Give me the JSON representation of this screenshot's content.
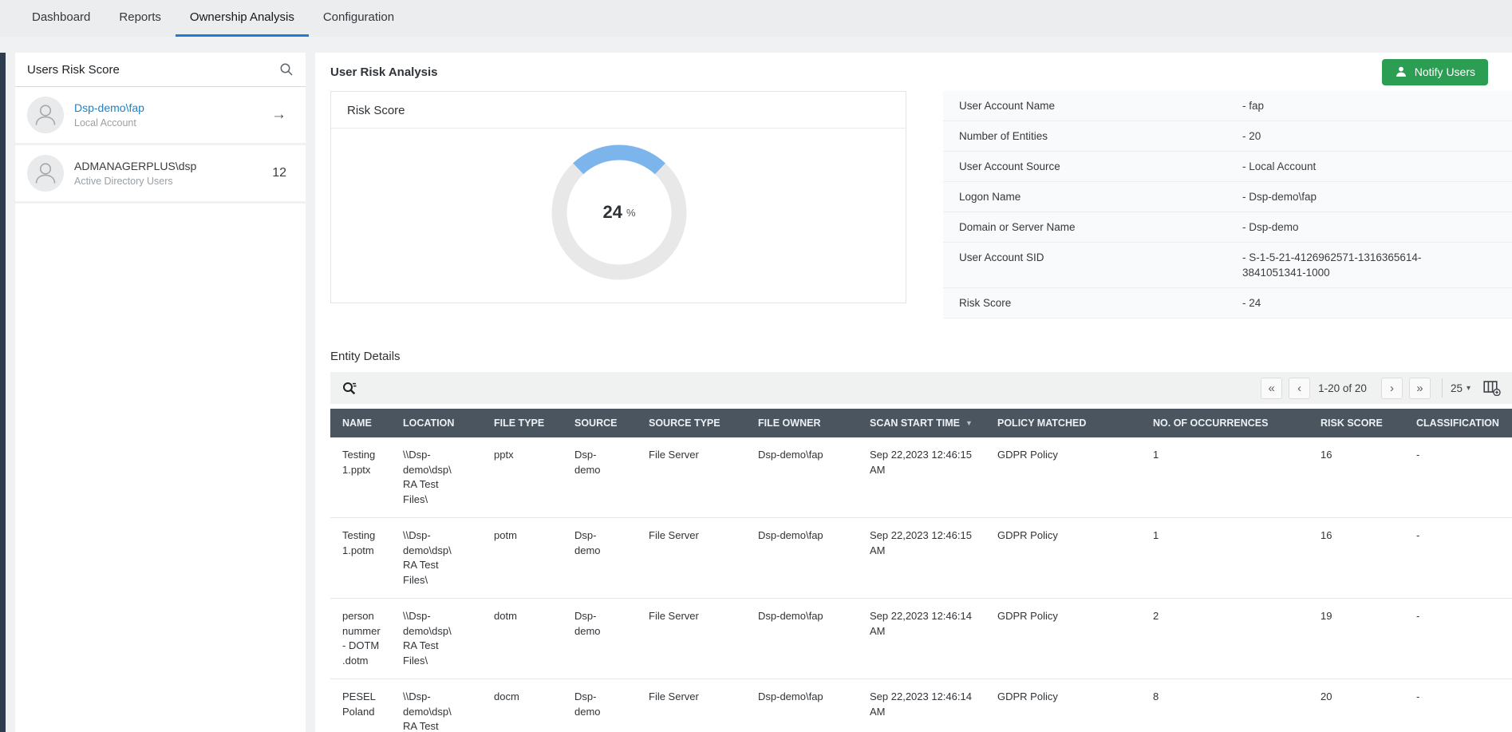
{
  "nav": {
    "items": [
      {
        "label": "Dashboard",
        "active": false
      },
      {
        "label": "Reports",
        "active": false
      },
      {
        "label": "Ownership Analysis",
        "active": true
      },
      {
        "label": "Configuration",
        "active": false
      }
    ]
  },
  "sidebar": {
    "title": "Users Risk Score",
    "users": [
      {
        "name": "Dsp-demo\\fap",
        "type": "Local Account",
        "link": true,
        "trailing": "arrow"
      },
      {
        "name": "ADMANAGERPLUS\\dsp",
        "type": "Active Directory Users",
        "link": false,
        "trailing": "count",
        "count": "12"
      }
    ]
  },
  "header": {
    "title": "User Risk Analysis",
    "notify_label": "Notify Users"
  },
  "risk_card": {
    "title": "Risk Score",
    "value": "24",
    "unit": "%",
    "arc_color": "#7cb5ec",
    "track_color": "#e8e8e8"
  },
  "account_details": {
    "rows": [
      {
        "label": "User Account Name",
        "value": "- fap"
      },
      {
        "label": "Number of Entities",
        "value": "- 20"
      },
      {
        "label": "User Account Source",
        "value": "- Local Account"
      },
      {
        "label": "Logon Name",
        "value": "- Dsp-demo\\fap"
      },
      {
        "label": "Domain or Server Name",
        "value": "- Dsp-demo"
      },
      {
        "label": "User Account SID",
        "value": "- S-1-5-21-4126962571-1316365614-3841051341-1000"
      },
      {
        "label": "Risk Score",
        "value": "- 24"
      }
    ]
  },
  "entity": {
    "title": "Entity Details",
    "toolbar": {
      "range": "1-20 of 20",
      "page_size": "25"
    },
    "table": {
      "columns": [
        {
          "label": "NAME"
        },
        {
          "label": "LOCATION"
        },
        {
          "label": "FILE TYPE"
        },
        {
          "label": "SOURCE"
        },
        {
          "label": "SOURCE TYPE"
        },
        {
          "label": "FILE OWNER"
        },
        {
          "label": "SCAN START TIME",
          "sorted": true
        },
        {
          "label": "POLICY MATCHED"
        },
        {
          "label": "NO. OF OCCURRENCES"
        },
        {
          "label": "RISK SCORE"
        },
        {
          "label": "CLASSIFICATION"
        }
      ],
      "rows": [
        [
          "Testing 1.pptx",
          "\\\\Dsp-demo\\dsp\\RA Test Files\\",
          "pptx",
          "Dsp-demo",
          "File Server",
          "Dsp-demo\\fap",
          "Sep 22,2023 12:46:15 AM",
          "GDPR Policy",
          "1",
          "16",
          "-"
        ],
        [
          "Testing 1.potm",
          "\\\\Dsp-demo\\dsp\\RA Test Files\\",
          "potm",
          "Dsp-demo",
          "File Server",
          "Dsp-demo\\fap",
          "Sep 22,2023 12:46:15 AM",
          "GDPR Policy",
          "1",
          "16",
          "-"
        ],
        [
          "person nummer - DOTM .dotm",
          "\\\\Dsp-demo\\dsp\\RA Test Files\\",
          "dotm",
          "Dsp-demo",
          "File Server",
          "Dsp-demo\\fap",
          "Sep 22,2023 12:46:14 AM",
          "GDPR Policy",
          "2",
          "19",
          "-"
        ],
        [
          "PESEL Poland",
          "\\\\Dsp-demo\\dsp\\RA Test Files\\",
          "docm",
          "Dsp-demo",
          "File Server",
          "Dsp-demo\\fap",
          "Sep 22,2023 12:46:14 AM",
          "GDPR Policy",
          "8",
          "20",
          "-"
        ]
      ]
    }
  },
  "icons": {
    "first": "«",
    "prev": "‹",
    "next": "›",
    "last": "»",
    "caret": "▾",
    "sort": "▼",
    "arrow_right": "→"
  }
}
